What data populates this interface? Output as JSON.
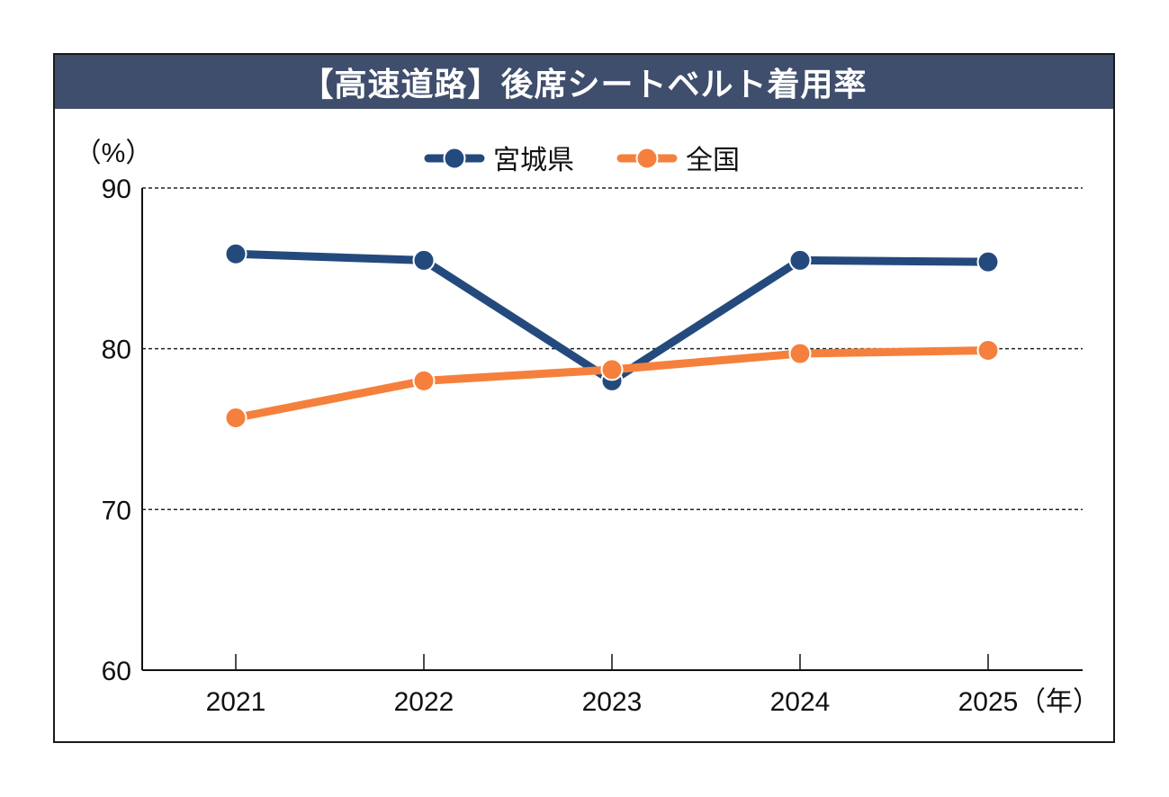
{
  "chart_data": {
    "type": "line",
    "title": "【高速道路】後席シートベルト着用率",
    "ylabel": "（%）",
    "xlabel_suffix": "（年）",
    "categories": [
      "2021",
      "2022",
      "2023",
      "2024",
      "2025"
    ],
    "ylim": [
      60,
      90
    ],
    "yticks": [
      60,
      70,
      80,
      90
    ],
    "ytick_labels": [
      "60",
      "70",
      "80",
      "90"
    ],
    "grid": true,
    "legend_position": "top-center",
    "series": [
      {
        "name": "宮城県",
        "color": "#244a7d",
        "values": [
          85.9,
          85.5,
          78.0,
          85.5,
          85.4
        ]
      },
      {
        "name": "全国",
        "color": "#f5803d",
        "values": [
          75.7,
          78.0,
          78.7,
          79.7,
          79.9
        ]
      }
    ]
  }
}
